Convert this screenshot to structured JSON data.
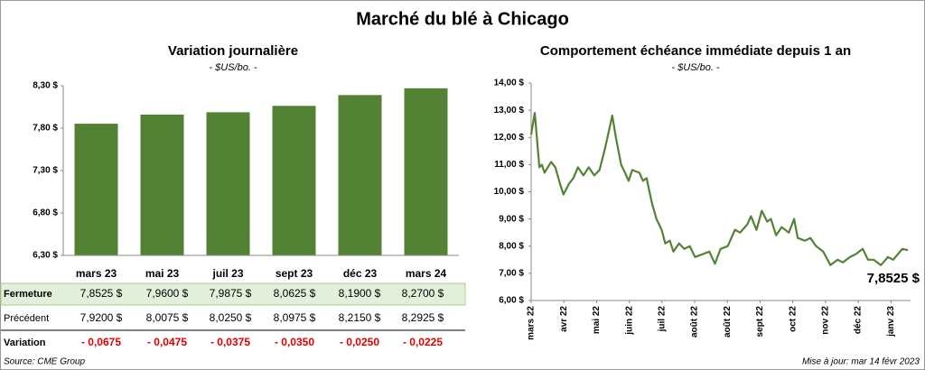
{
  "title": "Marché du blé à Chicago",
  "chart_data": [
    {
      "type": "bar",
      "title": "Variation journalière",
      "subtitle": "- $US/bo. -",
      "categories": [
        "mars 23",
        "mai 23",
        "juil 23",
        "sept 23",
        "déc 23",
        "mars 24"
      ],
      "values": [
        7.8525,
        7.96,
        7.9875,
        8.0625,
        8.19,
        8.27
      ],
      "color": "#548235",
      "ylim": [
        6.3,
        8.3
      ],
      "yticks": [
        {
          "value": 6.3,
          "label": "6,30 $"
        },
        {
          "value": 6.8,
          "label": "6,80 $"
        },
        {
          "value": 7.3,
          "label": "7,30 $"
        },
        {
          "value": 7.8,
          "label": "7,80 $"
        },
        {
          "value": 8.3,
          "label": "8,30 $"
        }
      ]
    },
    {
      "type": "line",
      "title": "Comportement  échéance immédiate depuis 1 an",
      "subtitle": "- $US/bo. -",
      "color": "#548235",
      "x": [
        0,
        0.11,
        0.25,
        0.33,
        0.41,
        0.61,
        0.74,
        0.88,
        0.99,
        1.16,
        1.29,
        1.43,
        1.6,
        1.76,
        1.93,
        2.09,
        2.26,
        2.48,
        2.59,
        2.75,
        2.87,
        2.98,
        3.09,
        3.31,
        3.42,
        3.53,
        3.69,
        3.83,
        3.99,
        4.1,
        4.24,
        4.35,
        4.52,
        4.68,
        4.85,
        5.01,
        5.23,
        5.45,
        5.62,
        5.79,
        6.01,
        6.23,
        6.39,
        6.61,
        6.72,
        6.89,
        7.05,
        7.22,
        7.33,
        7.49,
        7.66,
        7.88,
        8.04,
        8.15,
        8.37,
        8.54,
        8.71,
        8.93,
        9.15,
        9.37,
        9.53,
        9.75,
        9.92,
        10.14,
        10.3,
        10.47,
        10.69,
        10.91,
        11.07,
        11.35,
        11.52
      ],
      "values": [
        12.1,
        12.9,
        10.9,
        11.0,
        10.7,
        11.1,
        10.9,
        10.3,
        9.9,
        10.3,
        10.5,
        10.9,
        10.6,
        10.9,
        10.6,
        10.8,
        11.6,
        12.8,
        12.0,
        11.0,
        10.7,
        10.4,
        10.8,
        10.7,
        10.4,
        10.5,
        9.6,
        9.0,
        8.6,
        8.1,
        8.2,
        7.8,
        8.1,
        7.9,
        8.0,
        7.6,
        7.7,
        7.8,
        7.35,
        7.9,
        8.0,
        8.6,
        8.5,
        8.8,
        9.1,
        8.6,
        9.3,
        8.9,
        9.0,
        8.4,
        8.7,
        8.5,
        9.0,
        8.3,
        8.2,
        8.3,
        8.0,
        7.8,
        7.3,
        7.5,
        7.4,
        7.6,
        7.7,
        7.9,
        7.5,
        7.5,
        7.3,
        7.6,
        7.5,
        7.9,
        7.8525
      ],
      "xlim": [
        0,
        11.6
      ],
      "xticks": [
        {
          "value": 0,
          "label": "mars 22"
        },
        {
          "value": 1,
          "label": "avr 22"
        },
        {
          "value": 2,
          "label": "mai 22"
        },
        {
          "value": 3,
          "label": "juin 22"
        },
        {
          "value": 4,
          "label": "juil 22"
        },
        {
          "value": 5,
          "label": "août 22"
        },
        {
          "value": 6,
          "label": "août 22"
        },
        {
          "value": 7,
          "label": "sept 22"
        },
        {
          "value": 8,
          "label": "oct 22"
        },
        {
          "value": 9,
          "label": "nov 22"
        },
        {
          "value": 10,
          "label": "déc 22"
        },
        {
          "value": 11,
          "label": "janv 23"
        }
      ],
      "ylim": [
        6,
        14
      ],
      "yticks": [
        {
          "value": 6,
          "label": "6,00 $"
        },
        {
          "value": 7,
          "label": "7,00 $"
        },
        {
          "value": 8,
          "label": "8,00 $"
        },
        {
          "value": 9,
          "label": "9,00 $"
        },
        {
          "value": 10,
          "label": "10,00 $"
        },
        {
          "value": 11,
          "label": "11,00 $"
        },
        {
          "value": 12,
          "label": "12,00 $"
        },
        {
          "value": 13,
          "label": "13,00 $"
        },
        {
          "value": 14,
          "label": "14,00 $"
        }
      ],
      "annotation": "7,8525 $"
    }
  ],
  "table": {
    "rows": [
      {
        "label": "Fermeture",
        "cells": [
          "7,8525 $",
          "7,9600 $",
          "7,9875 $",
          "8,0625 $",
          "8,1900 $",
          "8,2700 $"
        ]
      },
      {
        "label": "Précédent",
        "cells": [
          "7,9200 $",
          "8,0075 $",
          "8,0250 $",
          "8,0975 $",
          "8,2150 $",
          "8,2925 $"
        ]
      },
      {
        "label": "Variation",
        "cells": [
          "- 0,0675",
          "- 0,0475",
          "- 0,0375",
          "- 0,0350",
          "- 0,0250",
          "- 0,0225"
        ]
      }
    ]
  },
  "source": "Source: CME Group",
  "updated": "Mise à jour: mar 14 févr 2023"
}
